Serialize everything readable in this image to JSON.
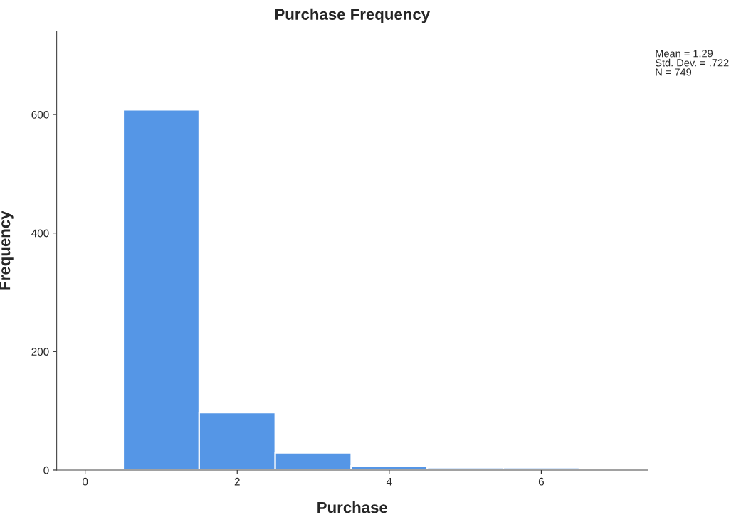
{
  "chart_data": {
    "type": "histogram",
    "title": "Purchase Frequency",
    "xlabel": "Purchase",
    "ylabel": "Frequency",
    "bins": [
      0.5,
      1.5,
      2.5,
      3.5,
      4.5,
      5.5,
      6.5
    ],
    "values": [
      608,
      97,
      29,
      7,
      4,
      4
    ],
    "color": "#5596e6",
    "xlim": [
      -0.375,
      7.4
    ],
    "xticks": [
      0,
      2,
      4,
      6
    ],
    "ylim": [
      0,
      740
    ],
    "yticks": [
      0,
      200,
      400,
      600
    ],
    "grid": false,
    "annotations": [
      "Mean = 1.29\nStd. Dev. = .722\nN = 749"
    ]
  }
}
